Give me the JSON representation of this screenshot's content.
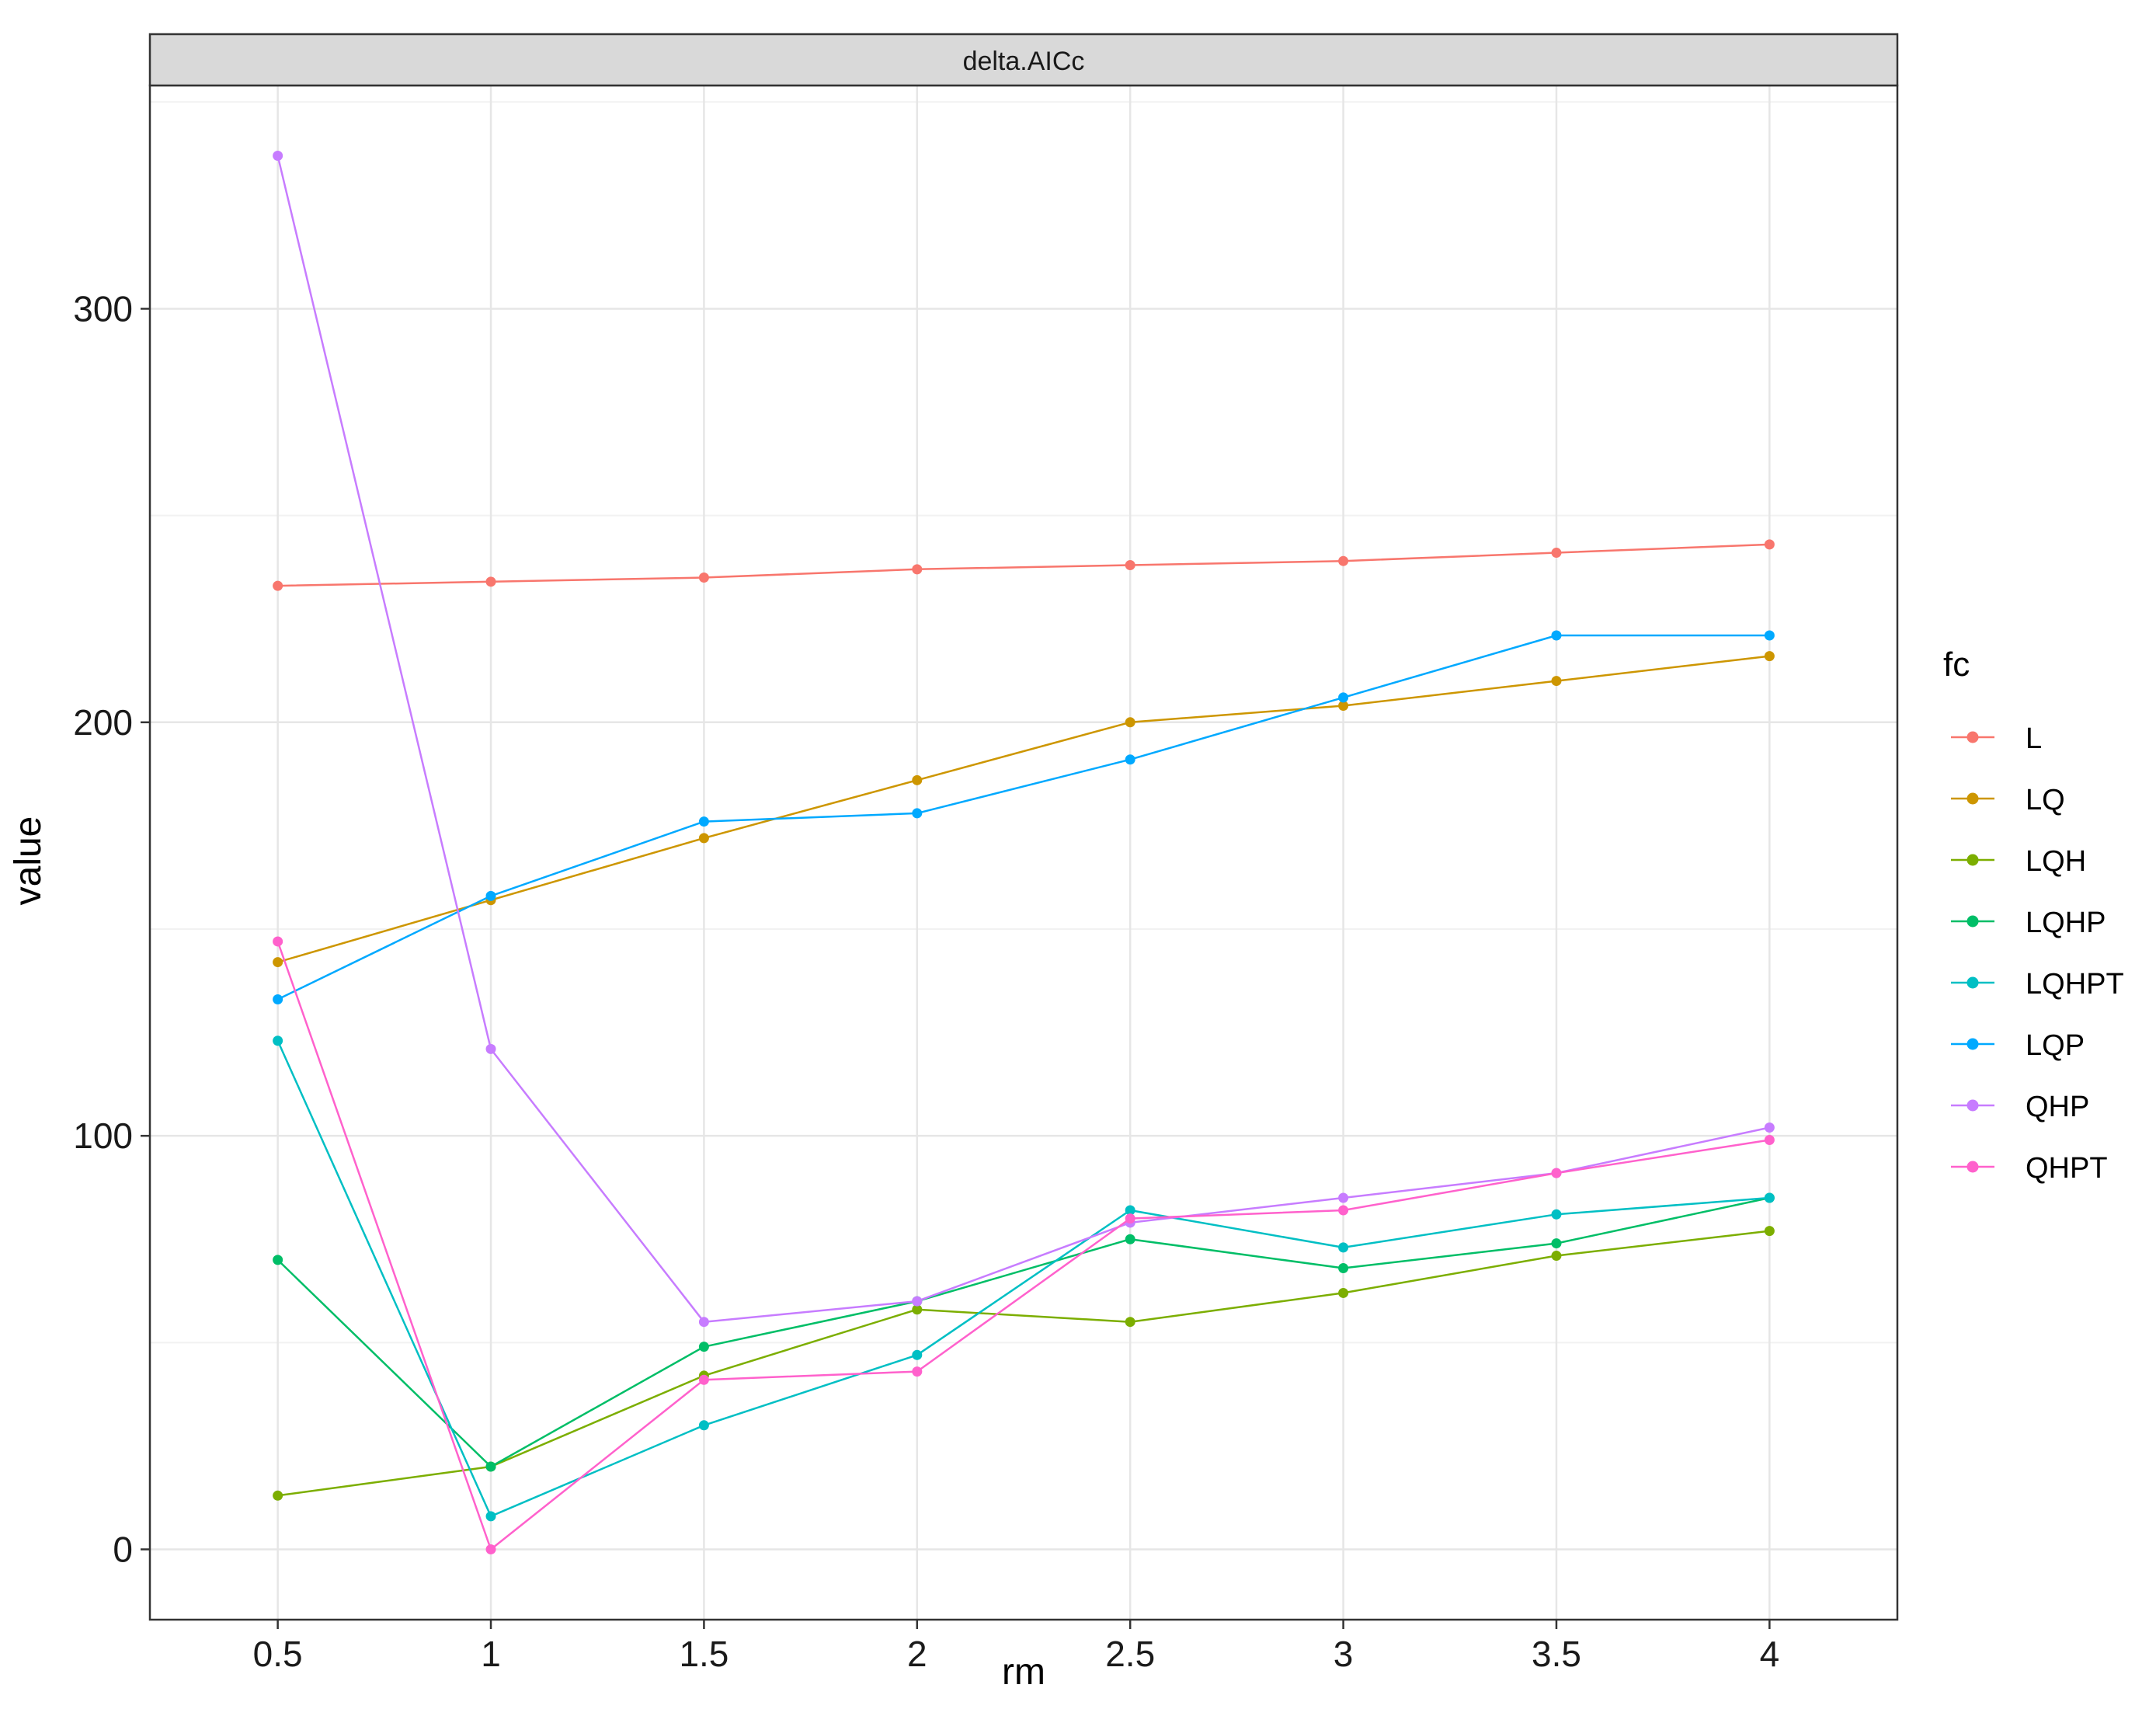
{
  "chart_data": {
    "type": "line",
    "facet_title": "delta.AICc",
    "xlabel": "rm",
    "ylabel": "value",
    "legend_title": "fc",
    "legend_position": "right",
    "grid": true,
    "x": [
      0.5,
      1,
      1.5,
      2,
      2.5,
      3,
      3.5,
      4
    ],
    "x_tick_labels": [
      "0.5",
      "1",
      "1.5",
      "2",
      "2.5",
      "3",
      "3.5",
      "4"
    ],
    "xlim": [
      0.2,
      4.3
    ],
    "y_ticks": [
      0,
      100,
      200,
      300
    ],
    "y_tick_labels": [
      "0",
      "100",
      "200",
      "300"
    ],
    "ylim": [
      -17,
      354
    ],
    "series": [
      {
        "name": "L",
        "color": "#F8766D",
        "values": [
          233,
          234,
          235,
          237,
          238,
          239,
          241,
          243
        ]
      },
      {
        "name": "LQ",
        "color": "#CD9600",
        "values": [
          142,
          157,
          172,
          186,
          200,
          204,
          210,
          216
        ]
      },
      {
        "name": "LQH",
        "color": "#7CAE00",
        "values": [
          13,
          20,
          42,
          58,
          55,
          62,
          71,
          77
        ]
      },
      {
        "name": "LQHP",
        "color": "#00BE67",
        "values": [
          70,
          20,
          49,
          60,
          75,
          68,
          74,
          85
        ]
      },
      {
        "name": "LQHPT",
        "color": "#00BFC4",
        "values": [
          123,
          8,
          30,
          47,
          82,
          73,
          81,
          85
        ]
      },
      {
        "name": "LQP",
        "color": "#00A9FF",
        "values": [
          133,
          158,
          176,
          178,
          191,
          206,
          221,
          221
        ]
      },
      {
        "name": "QHP",
        "color": "#C77CFF",
        "values": [
          337,
          121,
          55,
          60,
          79,
          85,
          91,
          102
        ]
      },
      {
        "name": "QHPT",
        "color": "#FF61CC",
        "values": [
          147,
          0,
          41,
          43,
          80,
          82,
          91,
          99
        ]
      }
    ]
  }
}
